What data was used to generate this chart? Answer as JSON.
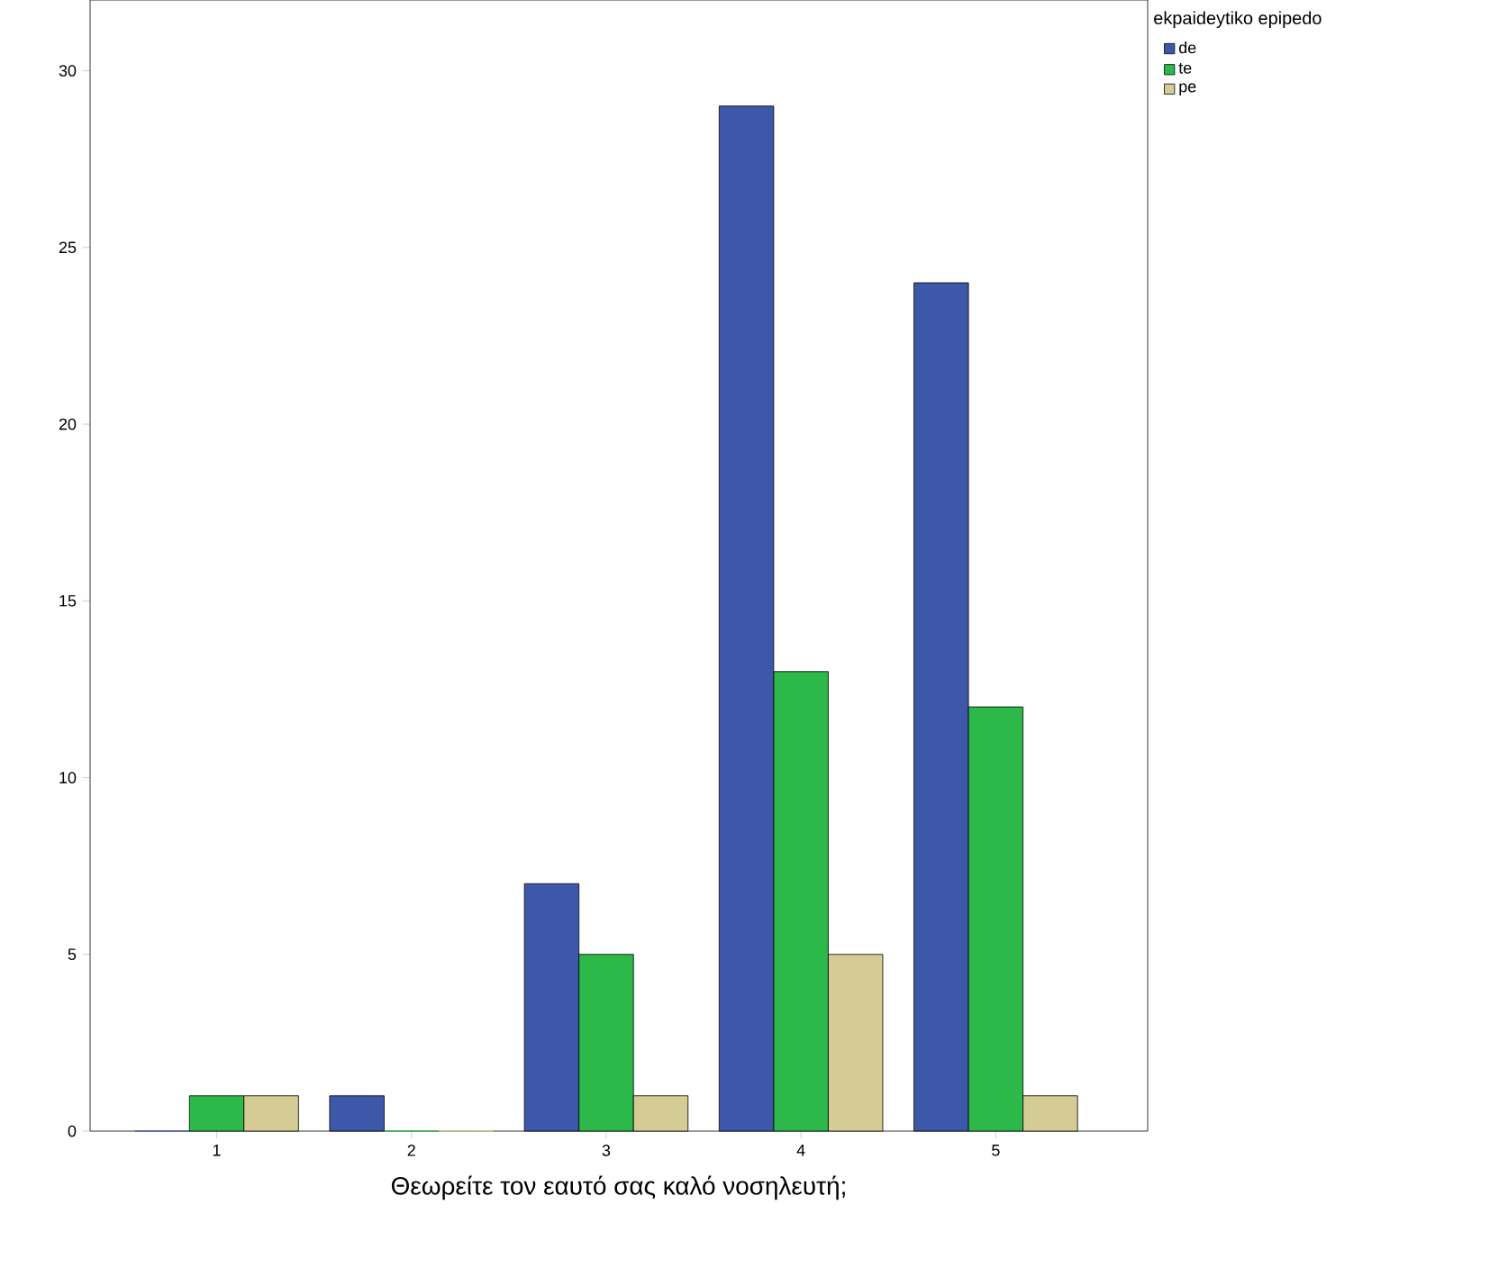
{
  "chart_data": {
    "type": "bar",
    "xlabel": "Θεωρείτε τον εαυτό σας καλό νοσηλευτή;",
    "legend_title": "ekpaideytiko epipedo",
    "categories": [
      "1",
      "2",
      "3",
      "4",
      "5"
    ],
    "series": [
      {
        "name": "de",
        "color": "#3d58a8",
        "values": [
          0,
          1,
          7,
          29,
          24
        ]
      },
      {
        "name": "te",
        "color": "#2db84a",
        "values": [
          1,
          0,
          5,
          13,
          12
        ]
      },
      {
        "name": "pe",
        "color": "#d4cc94",
        "values": [
          1,
          0,
          1,
          5,
          1
        ]
      }
    ],
    "ylim": [
      0,
      32
    ],
    "yticks": [
      0,
      5,
      10,
      15,
      20,
      25,
      30
    ],
    "grid": false,
    "legend": "top right"
  }
}
